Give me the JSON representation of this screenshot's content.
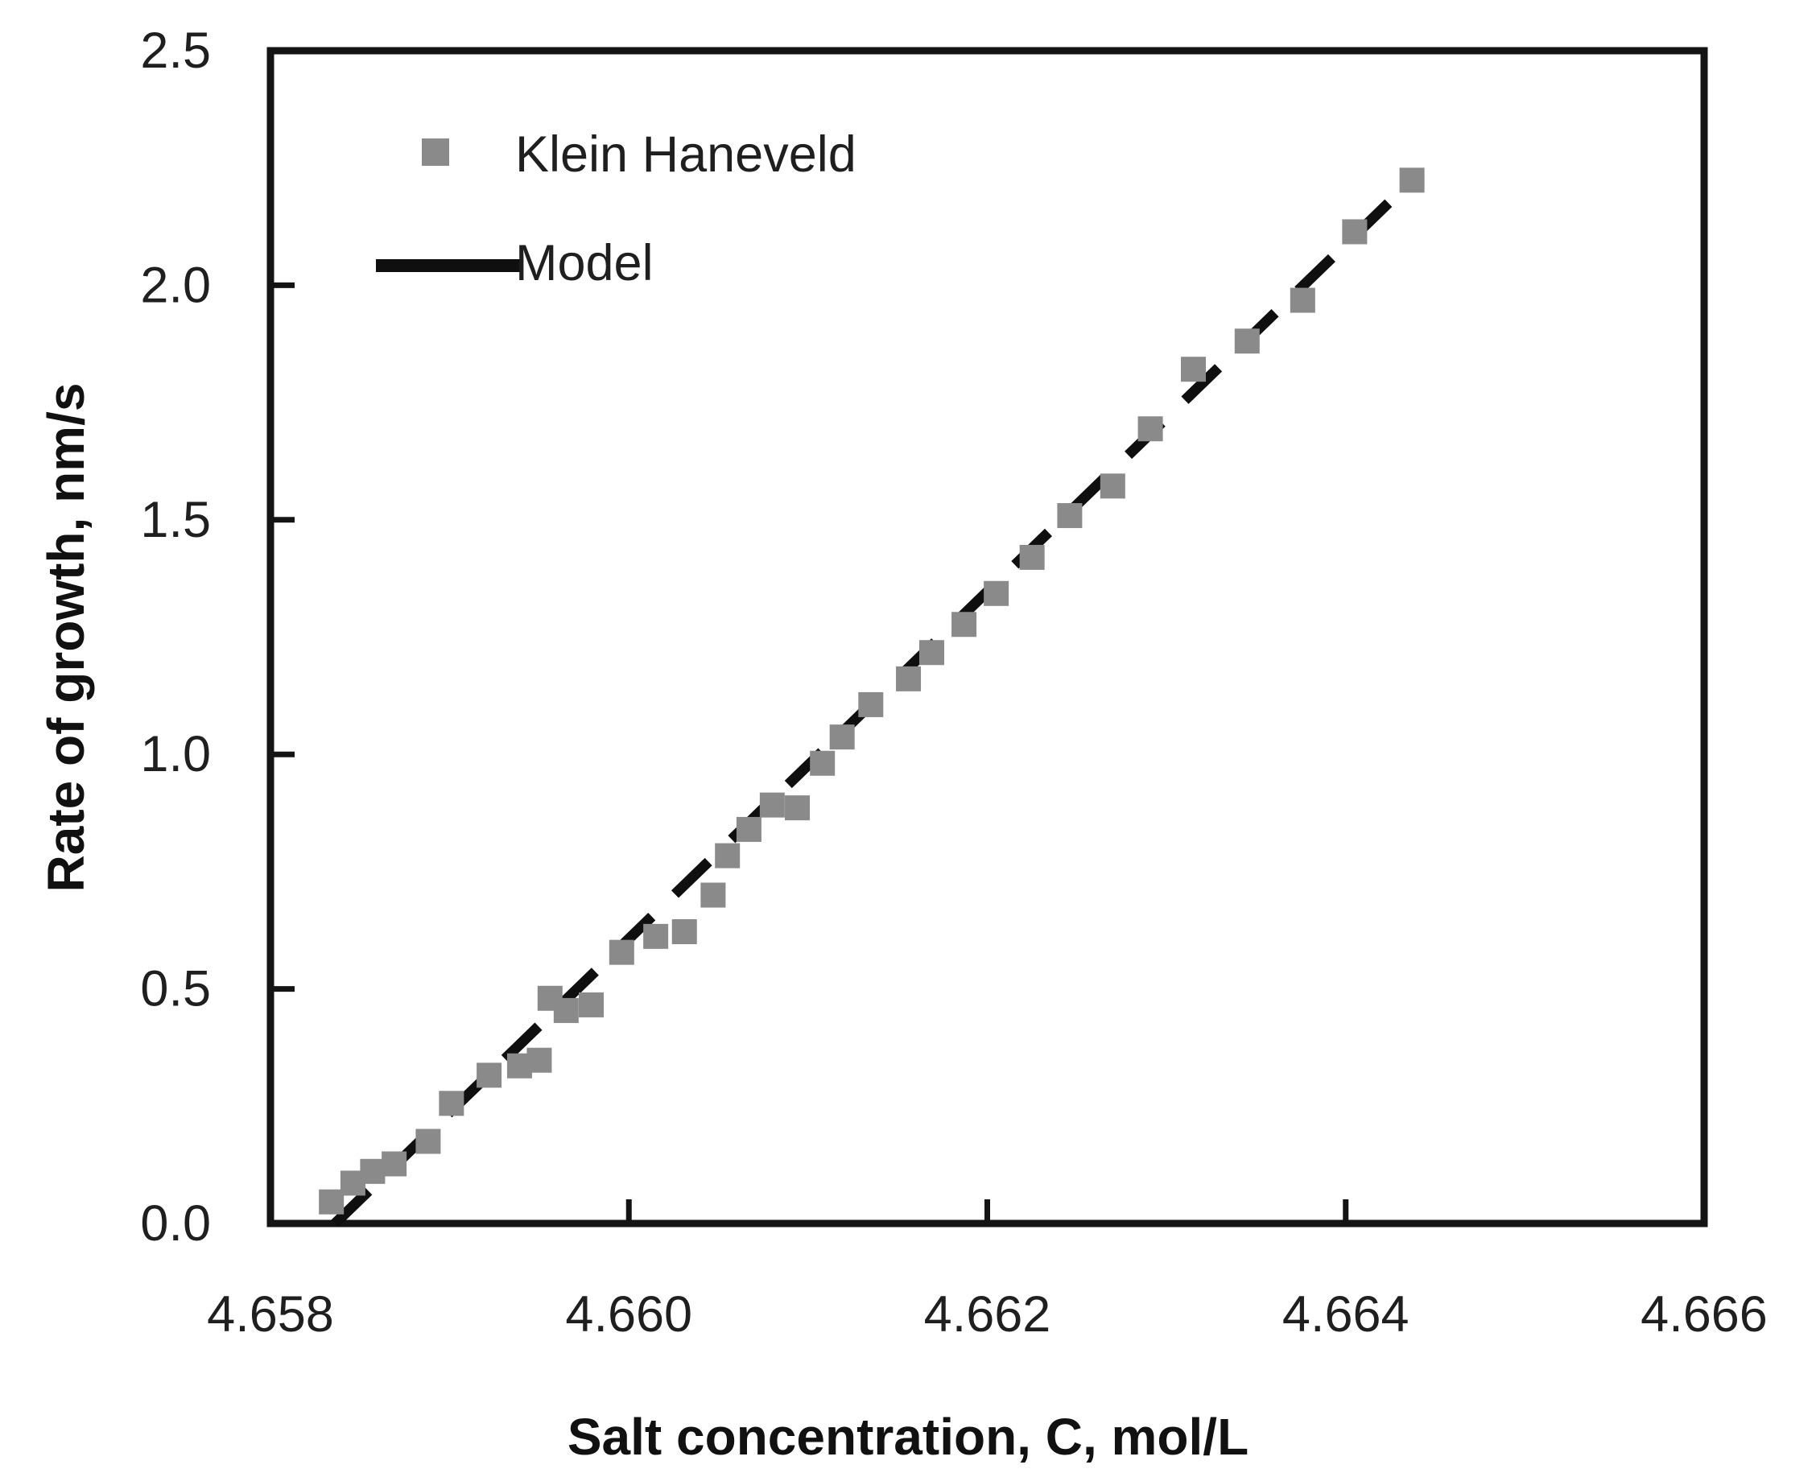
{
  "figure": {
    "background": "#ffffff"
  },
  "chart_data": {
    "type": "scatter",
    "title": "",
    "xlabel": "Salt concentration, C, mol/L",
    "ylabel": "Rate of growth, nm/s",
    "xlim": [
      4.658,
      4.666
    ],
    "ylim": [
      0.0,
      2.5
    ],
    "xticks": [
      4.658,
      4.66,
      4.662,
      4.664,
      4.666
    ],
    "xtick_labels": [
      "4.658",
      "4.660",
      "4.662",
      "4.664",
      "4.666"
    ],
    "yticks": [
      0.0,
      0.5,
      1.0,
      1.5,
      2.0,
      2.5
    ],
    "ytick_labels": [
      "0.0",
      "0.5",
      "1.0",
      "1.5",
      "2.0",
      "2.5"
    ],
    "grid": false,
    "axis_color": "#141414",
    "text_color": "#1f1f1f",
    "legend": {
      "position": "upper-left-inside",
      "entries": [
        "Klein Haneveld",
        "Model"
      ]
    },
    "series": [
      {
        "name": "Klein Haneveld",
        "type": "scatter",
        "marker": "square",
        "color": "#8a8a8a",
        "points": [
          [
            4.65834,
            0.046
          ],
          [
            4.65846,
            0.086
          ],
          [
            4.65857,
            0.111
          ],
          [
            4.65869,
            0.127
          ],
          [
            4.65888,
            0.175
          ],
          [
            4.65901,
            0.256
          ],
          [
            4.65922,
            0.316
          ],
          [
            4.65939,
            0.336
          ],
          [
            4.6595,
            0.348
          ],
          [
            4.65956,
            0.48
          ],
          [
            4.65965,
            0.454
          ],
          [
            4.65979,
            0.466
          ],
          [
            4.65996,
            0.578
          ],
          [
            4.66015,
            0.612
          ],
          [
            4.66031,
            0.622
          ],
          [
            4.66047,
            0.7
          ],
          [
            4.66055,
            0.784
          ],
          [
            4.66067,
            0.84
          ],
          [
            4.6608,
            0.892
          ],
          [
            4.66094,
            0.886
          ],
          [
            4.66108,
            0.981
          ],
          [
            4.66119,
            1.037
          ],
          [
            4.66135,
            1.106
          ],
          [
            4.66156,
            1.161
          ],
          [
            4.66169,
            1.217
          ],
          [
            4.66187,
            1.277
          ],
          [
            4.66205,
            1.343
          ],
          [
            4.66225,
            1.42
          ],
          [
            4.66246,
            1.509
          ],
          [
            4.6627,
            1.572
          ],
          [
            4.66291,
            1.694
          ],
          [
            4.66315,
            1.821
          ],
          [
            4.66345,
            1.881
          ],
          [
            4.66376,
            1.968
          ],
          [
            4.66405,
            2.114
          ],
          [
            4.66437,
            2.224
          ]
        ]
      },
      {
        "name": "Model",
        "type": "line",
        "line_style": "dashed",
        "color": "#0f0f0f",
        "points": [
          [
            4.65836,
            0.0
          ],
          [
            4.6644,
            2.235
          ]
        ]
      }
    ]
  }
}
